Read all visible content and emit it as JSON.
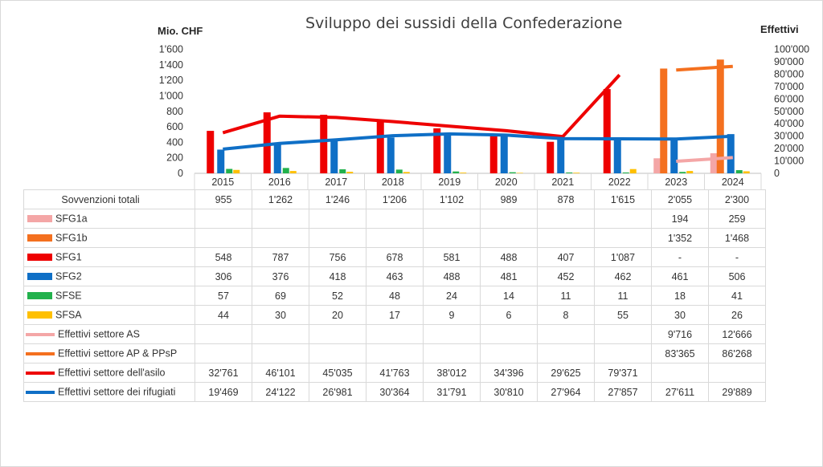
{
  "chart_data": {
    "type": "bar",
    "title": "Sviluppo dei sussidi della Confederazione",
    "ylabel_left": "Mio. CHF",
    "ylabel_right": "Effettivi",
    "ylim_left": [
      0,
      1600
    ],
    "ylim_right": [
      0,
      100000
    ],
    "yticks_left": [
      "0",
      "200",
      "400",
      "600",
      "800",
      "1'000",
      "1'200",
      "1'400",
      "1'600"
    ],
    "yticks_right": [
      "0",
      "10'000",
      "20'000",
      "30'000",
      "40'000",
      "50'000",
      "60'000",
      "70'000",
      "80'000",
      "90'000",
      "100'000"
    ],
    "categories": [
      "2015",
      "2016",
      "2017",
      "2018",
      "2019",
      "2020",
      "2021",
      "2022",
      "2023",
      "2024"
    ],
    "totals": {
      "name": "Sovvenzioni totali",
      "labels": [
        "955",
        "1'262",
        "1'246",
        "1'206",
        "1'102",
        "989",
        "878",
        "1'615",
        "2'055",
        "2'300"
      ]
    },
    "bar_series": [
      {
        "name": "SFG1a",
        "color": "#f4a6a6",
        "values": [
          null,
          null,
          null,
          null,
          null,
          null,
          null,
          null,
          194,
          259
        ],
        "labels": [
          "",
          "",
          "",
          "",
          "",
          "",
          "",
          "",
          "194",
          "259"
        ]
      },
      {
        "name": "SFG1b",
        "color": "#f4701f",
        "values": [
          null,
          null,
          null,
          null,
          null,
          null,
          null,
          null,
          1352,
          1468
        ],
        "labels": [
          "",
          "",
          "",
          "",
          "",
          "",
          "",
          "",
          "1'352",
          "1'468"
        ]
      },
      {
        "name": "SFG1",
        "color": "#ee0000",
        "values": [
          548,
          787,
          756,
          678,
          581,
          488,
          407,
          1087,
          null,
          null
        ],
        "labels": [
          "548",
          "787",
          "756",
          "678",
          "581",
          "488",
          "407",
          "1'087",
          "-",
          "-"
        ]
      },
      {
        "name": "SFG2",
        "color": "#0f6fc6",
        "values": [
          306,
          376,
          418,
          463,
          488,
          481,
          452,
          462,
          461,
          506
        ],
        "labels": [
          "306",
          "376",
          "418",
          "463",
          "488",
          "481",
          "452",
          "462",
          "461",
          "506"
        ]
      },
      {
        "name": "SFSE",
        "color": "#22b14c",
        "values": [
          57,
          69,
          52,
          48,
          24,
          14,
          11,
          11,
          18,
          41
        ],
        "labels": [
          "57",
          "69",
          "52",
          "48",
          "24",
          "14",
          "11",
          "11",
          "18",
          "41"
        ]
      },
      {
        "name": "SFSA",
        "color": "#ffc000",
        "values": [
          44,
          30,
          20,
          17,
          9,
          6,
          8,
          55,
          30,
          26
        ],
        "labels": [
          "44",
          "30",
          "20",
          "17",
          "9",
          "6",
          "8",
          "55",
          "30",
          "26"
        ]
      }
    ],
    "line_series": [
      {
        "name": "Effettivi settore AS",
        "color": "#f4a6a6",
        "values": [
          null,
          null,
          null,
          null,
          null,
          null,
          null,
          null,
          9716,
          12666
        ],
        "labels": [
          "",
          "",
          "",
          "",
          "",
          "",
          "",
          "",
          "9'716",
          "12'666"
        ]
      },
      {
        "name": "Effettivi settore AP & PPsP",
        "color": "#f4701f",
        "values": [
          null,
          null,
          null,
          null,
          null,
          null,
          null,
          null,
          83365,
          86268
        ],
        "labels": [
          "",
          "",
          "",
          "",
          "",
          "",
          "",
          "",
          "83'365",
          "86'268"
        ]
      },
      {
        "name": "Effettivi settore dell'asilo",
        "color": "#ee0000",
        "values": [
          32761,
          46101,
          45035,
          41763,
          38012,
          34396,
          29625,
          79371,
          null,
          null
        ],
        "labels": [
          "32'761",
          "46'101",
          "45'035",
          "41'763",
          "38'012",
          "34'396",
          "29'625",
          "79'371",
          "",
          ""
        ]
      },
      {
        "name": "Effettivi settore dei rifugiati",
        "color": "#0f6fc6",
        "values": [
          19469,
          24122,
          26981,
          30364,
          31791,
          30810,
          27964,
          27857,
          27611,
          29889
        ],
        "labels": [
          "19'469",
          "24'122",
          "26'981",
          "30'364",
          "31'791",
          "30'810",
          "27'964",
          "27'857",
          "27'611",
          "29'889"
        ]
      }
    ]
  }
}
